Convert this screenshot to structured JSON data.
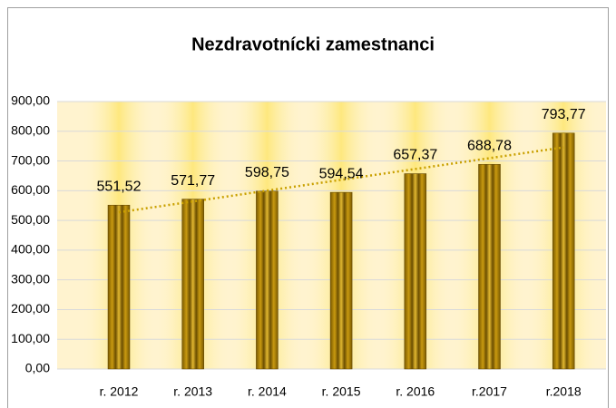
{
  "chart_data": {
    "type": "bar",
    "title": "Nezdravotnícki zamestnanci",
    "categories": [
      "r. 2012",
      "r. 2013",
      "r. 2014",
      "r. 2015",
      "r. 2016",
      "r.2017",
      "r.2018"
    ],
    "values": [
      551.52,
      571.77,
      598.75,
      594.54,
      657.37,
      688.78,
      793.77
    ],
    "value_labels": [
      "551,52",
      "571,77",
      "598,75",
      "594,54",
      "657,37",
      "688,78",
      "793,77"
    ],
    "color": "#b8860b",
    "ylim": [
      0,
      900
    ],
    "yticks": [
      {
        "value": 0,
        "label": "0,00"
      },
      {
        "value": 100,
        "label": "100,00"
      },
      {
        "value": 200,
        "label": "200,00"
      },
      {
        "value": 300,
        "label": "300,00"
      },
      {
        "value": 400,
        "label": "400,00"
      },
      {
        "value": 500,
        "label": "500,00"
      },
      {
        "value": 600,
        "label": "600,00"
      },
      {
        "value": 700,
        "label": "700,00"
      },
      {
        "value": 800,
        "label": "800,00"
      },
      {
        "value": 900,
        "label": "900,00"
      }
    ],
    "grid": true,
    "trendline": true,
    "trendline_color": "#c9a000"
  }
}
